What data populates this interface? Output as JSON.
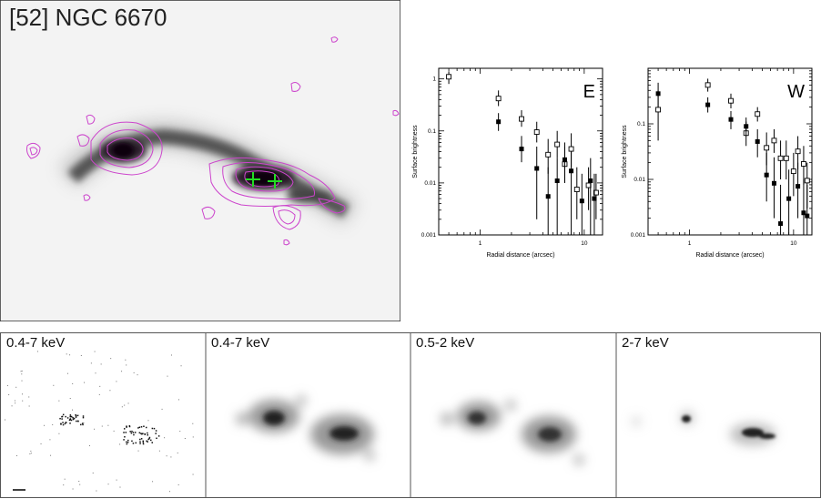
{
  "main_image": {
    "title": "[52] NGC 6670",
    "colors": {
      "contour": "#cc44cc",
      "marker": "#22dd22",
      "galaxy": "#1a0a1a"
    }
  },
  "bands": [
    {
      "label": "0.4-7 keV",
      "style": "raw"
    },
    {
      "label": "0.4-7 keV",
      "style": "smoothed"
    },
    {
      "label": "0.5-2 keV",
      "style": "smoothed"
    },
    {
      "label": "2-7 keV",
      "style": "hard"
    }
  ],
  "chart_data": [
    {
      "type": "scatter",
      "panel_label": "E",
      "xlabel": "Radial distance (arcsec)",
      "ylabel": "Surface brightness",
      "xscale": "log",
      "yscale": "log",
      "xlim": [
        0.4,
        15
      ],
      "ylim": [
        0.001,
        1.6
      ],
      "x_ticks": [
        1,
        10
      ],
      "x_tick_labels": [
        "1",
        "10"
      ],
      "y_ticks": [
        0.001,
        0.01,
        0.1,
        1
      ],
      "y_tick_labels": [
        "0.001",
        "0.01",
        "0.1",
        "1"
      ],
      "series": [
        {
          "name": "open",
          "marker": "open-square",
          "points": [
            {
              "x": 0.5,
              "y": 1.1,
              "lo": 0.8,
              "hi": 1.4
            },
            {
              "x": 1.5,
              "y": 0.42,
              "lo": 0.3,
              "hi": 0.6
            },
            {
              "x": 2.5,
              "y": 0.17,
              "lo": 0.12,
              "hi": 0.25
            },
            {
              "x": 3.5,
              "y": 0.095,
              "lo": 0.06,
              "hi": 0.15
            },
            {
              "x": 4.5,
              "y": 0.035,
              "lo": 0.015,
              "hi": 0.07
            },
            {
              "x": 5.5,
              "y": 0.055,
              "lo": 0.03,
              "hi": 0.1
            },
            {
              "x": 6.5,
              "y": 0.023,
              "lo": 0.01,
              "hi": 0.05
            },
            {
              "x": 7.5,
              "y": 0.045,
              "lo": 0.02,
              "hi": 0.09
            },
            {
              "x": 8.5,
              "y": 0.0075,
              "lo": 0.002,
              "hi": 0.02
            },
            {
              "x": 11,
              "y": 0.009,
              "lo": 0.003,
              "hi": 0.02
            },
            {
              "x": 13,
              "y": 0.0065,
              "lo": 0.002,
              "hi": 0.015
            }
          ]
        },
        {
          "name": "filled",
          "marker": "filled-square",
          "points": [
            {
              "x": 1.5,
              "y": 0.15,
              "lo": 0.1,
              "hi": 0.22
            },
            {
              "x": 2.5,
              "y": 0.045,
              "lo": 0.025,
              "hi": 0.08
            },
            {
              "x": 3.5,
              "y": 0.019,
              "lo": 0.002,
              "hi": 0.05
            },
            {
              "x": 4.5,
              "y": 0.0055,
              "lo": 0.001,
              "hi": 0.02
            },
            {
              "x": 5.5,
              "y": 0.011,
              "lo": 0.001,
              "hi": 0.03
            },
            {
              "x": 6.5,
              "y": 0.028,
              "lo": 0.01,
              "hi": 0.06
            },
            {
              "x": 7.5,
              "y": 0.017,
              "lo": 0.001,
              "hi": 0.04
            },
            {
              "x": 9.5,
              "y": 0.0045,
              "lo": 0.001,
              "hi": 0.015
            },
            {
              "x": 11.5,
              "y": 0.011,
              "lo": 0.001,
              "hi": 0.03
            },
            {
              "x": 12.5,
              "y": 0.005,
              "lo": 0.001,
              "hi": 0.015
            }
          ]
        }
      ]
    },
    {
      "type": "scatter",
      "panel_label": "W",
      "xlabel": "Radial distance (arcsec)",
      "ylabel": "Surface brightness",
      "xscale": "log",
      "yscale": "log",
      "xlim": [
        0.4,
        15
      ],
      "ylim": [
        0.001,
        1.0
      ],
      "x_ticks": [
        1,
        10
      ],
      "x_tick_labels": [
        "1",
        "10"
      ],
      "y_ticks": [
        0.001,
        0.01,
        0.1
      ],
      "y_tick_labels": [
        "0.001",
        "0.01",
        "0.1"
      ],
      "series": [
        {
          "name": "open",
          "marker": "open-square",
          "points": [
            {
              "x": 0.5,
              "y": 0.18,
              "lo": 0.05,
              "hi": 0.4
            },
            {
              "x": 1.5,
              "y": 0.5,
              "lo": 0.38,
              "hi": 0.65
            },
            {
              "x": 2.5,
              "y": 0.26,
              "lo": 0.19,
              "hi": 0.35
            },
            {
              "x": 3.5,
              "y": 0.068,
              "lo": 0.04,
              "hi": 0.11
            },
            {
              "x": 4.5,
              "y": 0.15,
              "lo": 0.11,
              "hi": 0.2
            },
            {
              "x": 5.5,
              "y": 0.037,
              "lo": 0.018,
              "hi": 0.07
            },
            {
              "x": 6.5,
              "y": 0.05,
              "lo": 0.03,
              "hi": 0.08
            },
            {
              "x": 7.5,
              "y": 0.024,
              "lo": 0.01,
              "hi": 0.05
            },
            {
              "x": 8.5,
              "y": 0.024,
              "lo": 0.01,
              "hi": 0.05
            },
            {
              "x": 10,
              "y": 0.014,
              "lo": 0.005,
              "hi": 0.03
            },
            {
              "x": 11,
              "y": 0.032,
              "lo": 0.015,
              "hi": 0.06
            },
            {
              "x": 12.5,
              "y": 0.019,
              "lo": 0.008,
              "hi": 0.04
            },
            {
              "x": 13.5,
              "y": 0.0095,
              "lo": 0.003,
              "hi": 0.02
            }
          ]
        },
        {
          "name": "filled",
          "marker": "filled-square",
          "points": [
            {
              "x": 0.5,
              "y": 0.35,
              "lo": 0.2,
              "hi": 0.55
            },
            {
              "x": 1.5,
              "y": 0.22,
              "lo": 0.16,
              "hi": 0.3
            },
            {
              "x": 2.5,
              "y": 0.12,
              "lo": 0.08,
              "hi": 0.17
            },
            {
              "x": 3.5,
              "y": 0.09,
              "lo": 0.06,
              "hi": 0.13
            },
            {
              "x": 4.5,
              "y": 0.048,
              "lo": 0.025,
              "hi": 0.08
            },
            {
              "x": 5.5,
              "y": 0.012,
              "lo": 0.004,
              "hi": 0.03
            },
            {
              "x": 6.5,
              "y": 0.0085,
              "lo": 0.002,
              "hi": 0.025
            },
            {
              "x": 7.5,
              "y": 0.0016,
              "lo": 0.001,
              "hi": 0.008
            },
            {
              "x": 9,
              "y": 0.0045,
              "lo": 0.001,
              "hi": 0.015
            },
            {
              "x": 11,
              "y": 0.0075,
              "lo": 0.002,
              "hi": 0.02
            },
            {
              "x": 12.5,
              "y": 0.0025,
              "lo": 0.001,
              "hi": 0.01
            },
            {
              "x": 13.5,
              "y": 0.0022,
              "lo": 0.001,
              "hi": 0.008
            }
          ]
        }
      ]
    }
  ]
}
